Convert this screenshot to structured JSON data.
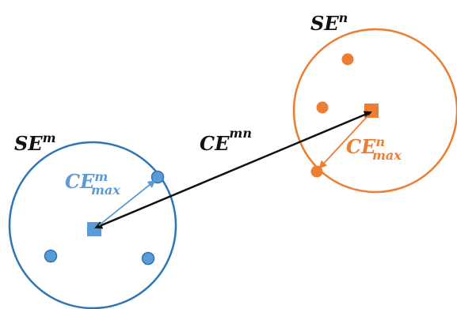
{
  "colors": {
    "cluster_m": "#2e75b6",
    "cluster_m_fill": "#5b9bd5",
    "cluster_n": "#ed7d31",
    "connector": "#111111",
    "arrow_m": "#5b9bd5",
    "arrow_n": "#ed7d31"
  },
  "labels": {
    "se_n_base": "SE",
    "se_n_sup": "n",
    "se_m_base": "SE",
    "se_m_sup": "m",
    "ce_mn_base": "CE",
    "ce_mn_sup": "mn",
    "ce_m_base": "CE",
    "ce_m_sup": "m",
    "ce_m_sub": "max",
    "ce_n_base": "CE",
    "ce_n_sup": "n",
    "ce_n_sub": "max"
  },
  "shapes": {
    "cluster_circle": "circle",
    "member_node": "dot",
    "centroid": "square",
    "connector": "double-headed-arrow",
    "radius_arrow": "single-headed-arrow"
  }
}
